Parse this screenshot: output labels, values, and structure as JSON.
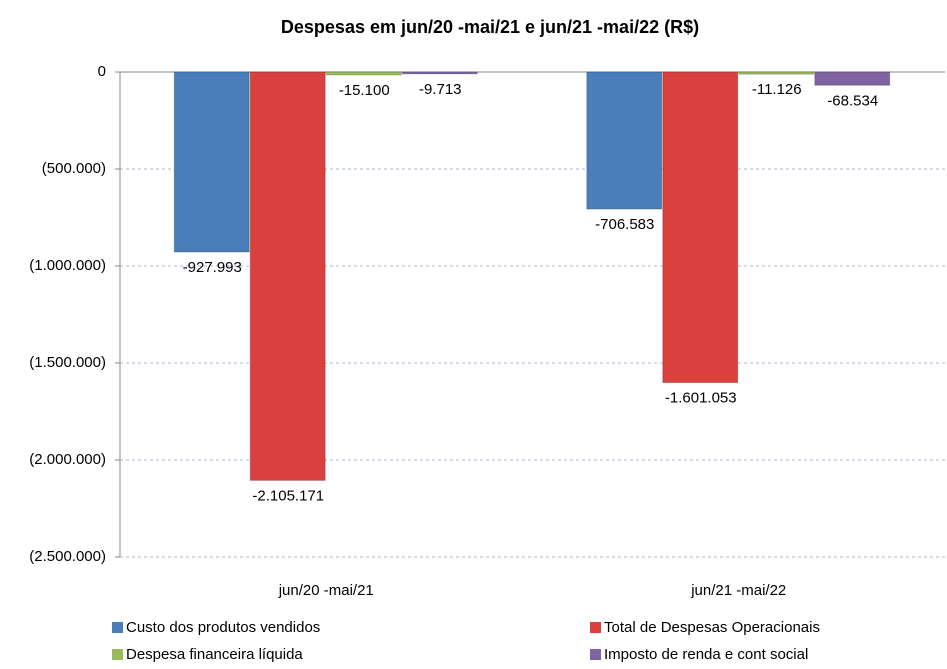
{
  "chart_data": {
    "type": "bar",
    "title": "Despesas em jun/20 -mai/21 e jun/21 -mai/22 (R$)",
    "categories": [
      "jun/20 -mai/21",
      "jun/21 -mai/22"
    ],
    "series": [
      {
        "name": "Custo dos produtos vendidos",
        "color": "#4a7ebb",
        "values": [
          -927993,
          -706583
        ],
        "value_labels": [
          "-927.993",
          "-706.583"
        ]
      },
      {
        "name": "Total de Despesas Operacionais",
        "color": "#d9403e",
        "values": [
          -2105171,
          -1601053
        ],
        "value_labels": [
          "-2.105.171",
          "-1.601.053"
        ]
      },
      {
        "name": "Despesa financeira líquida",
        "color": "#9bbb59",
        "values": [
          -15100,
          -11126
        ],
        "value_labels": [
          "-15.100",
          "-11.126"
        ]
      },
      {
        "name": "Imposto de renda e cont social",
        "color": "#8064a2",
        "values": [
          -9713,
          -68534
        ],
        "value_labels": [
          "-9.713",
          "-68.534"
        ]
      }
    ],
    "ylim": [
      -2500000,
      0
    ],
    "yticks": [
      0,
      {
        "value": -500000,
        "label": "(500.000)"
      },
      {
        "value": -1000000,
        "label": "(1.000.000)"
      },
      {
        "value": -1500000,
        "label": "(1.500.000)"
      },
      {
        "value": -2000000,
        "label": "(2.000.000)"
      },
      {
        "value": -2500000,
        "label": "(2.500.000)"
      }
    ],
    "grid": true,
    "legend": "bottom"
  }
}
